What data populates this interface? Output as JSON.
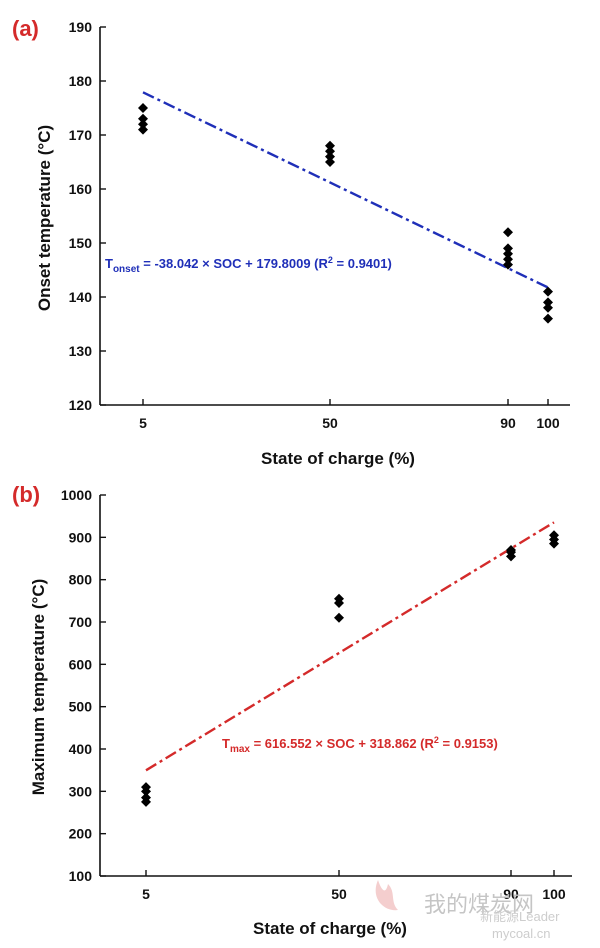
{
  "chart_data": [
    {
      "type": "scatter",
      "panel_label": "(a)",
      "xlabel": "State of charge (%)",
      "ylabel": "Onset temperature (°C)",
      "x_ticks": [
        5,
        50,
        90,
        100
      ],
      "ylim": [
        120,
        190
      ],
      "y_ticks": [
        120,
        130,
        140,
        150,
        160,
        170,
        180,
        190
      ],
      "grid": false,
      "series": [
        {
          "points": [
            [
              5,
              171
            ],
            [
              5,
              172
            ],
            [
              5,
              173
            ],
            [
              5,
              175
            ],
            [
              50,
              165
            ],
            [
              50,
              166
            ],
            [
              50,
              167
            ],
            [
              50,
              168
            ],
            [
              90,
              146
            ],
            [
              90,
              147
            ],
            [
              90,
              148
            ],
            [
              90,
              149
            ],
            [
              90,
              152
            ],
            [
              100,
              136
            ],
            [
              100,
              138
            ],
            [
              100,
              139
            ],
            [
              100,
              141
            ]
          ]
        }
      ],
      "fit_line": {
        "slope": -38.042,
        "intercept": 179.8009,
        "x_range": [
          5,
          100
        ],
        "color": "#1f2fb8"
      },
      "equation": {
        "lhs": "T",
        "sub": "onset",
        "rhs": " = -38.042 × SOC + 179.8009 (R",
        "sup": "2",
        "tail": " = 0.9401)"
      }
    },
    {
      "type": "scatter",
      "panel_label": "(b)",
      "xlabel": "State of charge (%)",
      "ylabel": "Maximum temperature (°C)",
      "x_ticks": [
        5,
        50,
        90,
        100
      ],
      "ylim": [
        100,
        1000
      ],
      "y_ticks": [
        100,
        200,
        300,
        400,
        500,
        600,
        700,
        800,
        900,
        1000
      ],
      "grid": false,
      "series": [
        {
          "points": [
            [
              5,
              275
            ],
            [
              5,
              285
            ],
            [
              5,
              300
            ],
            [
              5,
              310
            ],
            [
              50,
              710
            ],
            [
              50,
              745
            ],
            [
              50,
              755
            ],
            [
              90,
              855
            ],
            [
              90,
              865
            ],
            [
              90,
              870
            ],
            [
              100,
              885
            ],
            [
              100,
              895
            ],
            [
              100,
              905
            ]
          ]
        }
      ],
      "fit_line": {
        "slope": 616.552,
        "intercept": 318.862,
        "x_range": [
          5,
          100
        ],
        "color": "#d42a2a"
      },
      "equation": {
        "lhs": "T",
        "sub": "max",
        "rhs": " = 616.552 × SOC + 318.862 (R",
        "sup": "2",
        "tail": " = 0.9153)"
      }
    }
  ],
  "watermark": {
    "text_cn": "我的煤炭网",
    "text_source": "新能源Leader",
    "text_url": "mycoal.cn"
  }
}
